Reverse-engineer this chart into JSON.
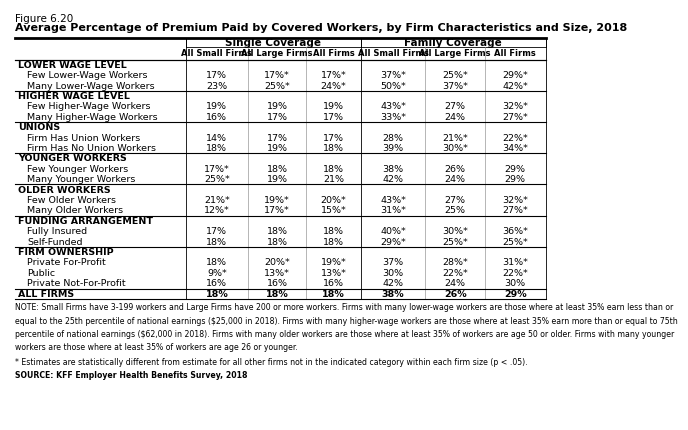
{
  "title_line1": "Figure 6.20",
  "title_line2": "Average Percentage of Premium Paid by Covered Workers, by Firm Characteristics and Size, 2018",
  "col_headers_level2": [
    "All Small Firms",
    "All Large Firms",
    "All Firms",
    "All Small Firms",
    "All Large Firms",
    "All Firms"
  ],
  "rows": [
    {
      "label": "LOWER WAGE LEVEL",
      "bold": true,
      "category": true,
      "values": [
        "",
        "",
        "",
        "",
        "",
        ""
      ]
    },
    {
      "label": "Few Lower-Wage Workers",
      "bold": false,
      "category": false,
      "values": [
        "17%",
        "17%*",
        "17%*",
        "37%*",
        "25%*",
        "29%*"
      ]
    },
    {
      "label": "Many Lower-Wage Workers",
      "bold": false,
      "category": false,
      "values": [
        "23%",
        "25%*",
        "24%*",
        "50%*",
        "37%*",
        "42%*"
      ]
    },
    {
      "label": "HIGHER WAGE LEVEL",
      "bold": true,
      "category": true,
      "values": [
        "",
        "",
        "",
        "",
        "",
        ""
      ]
    },
    {
      "label": "Few Higher-Wage Workers",
      "bold": false,
      "category": false,
      "values": [
        "19%",
        "19%",
        "19%",
        "43%*",
        "27%",
        "32%*"
      ]
    },
    {
      "label": "Many Higher-Wage Workers",
      "bold": false,
      "category": false,
      "values": [
        "16%",
        "17%",
        "17%",
        "33%*",
        "24%",
        "27%*"
      ]
    },
    {
      "label": "UNIONS",
      "bold": true,
      "category": true,
      "values": [
        "",
        "",
        "",
        "",
        "",
        ""
      ]
    },
    {
      "label": "Firm Has Union Workers",
      "bold": false,
      "category": false,
      "values": [
        "14%",
        "17%",
        "17%",
        "28%",
        "21%*",
        "22%*"
      ]
    },
    {
      "label": "Firm Has No Union Workers",
      "bold": false,
      "category": false,
      "values": [
        "18%",
        "19%",
        "18%",
        "39%",
        "30%*",
        "34%*"
      ]
    },
    {
      "label": "YOUNGER WORKERS",
      "bold": true,
      "category": true,
      "values": [
        "",
        "",
        "",
        "",
        "",
        ""
      ]
    },
    {
      "label": "Few Younger Workers",
      "bold": false,
      "category": false,
      "values": [
        "17%*",
        "18%",
        "18%",
        "38%",
        "26%",
        "29%"
      ]
    },
    {
      "label": "Many Younger Workers",
      "bold": false,
      "category": false,
      "values": [
        "25%*",
        "19%",
        "21%",
        "42%",
        "24%",
        "29%"
      ]
    },
    {
      "label": "OLDER WORKERS",
      "bold": true,
      "category": true,
      "values": [
        "",
        "",
        "",
        "",
        "",
        ""
      ]
    },
    {
      "label": "Few Older Workers",
      "bold": false,
      "category": false,
      "values": [
        "21%*",
        "19%*",
        "20%*",
        "43%*",
        "27%",
        "32%*"
      ]
    },
    {
      "label": "Many Older Workers",
      "bold": false,
      "category": false,
      "values": [
        "12%*",
        "17%*",
        "15%*",
        "31%*",
        "25%",
        "27%*"
      ]
    },
    {
      "label": "FUNDING ARRANGEMENT",
      "bold": true,
      "category": true,
      "values": [
        "",
        "",
        "",
        "",
        "",
        ""
      ]
    },
    {
      "label": "Fully Insured",
      "bold": false,
      "category": false,
      "values": [
        "17%",
        "18%",
        "18%",
        "40%*",
        "30%*",
        "36%*"
      ]
    },
    {
      "label": "Self-Funded",
      "bold": false,
      "category": false,
      "values": [
        "18%",
        "18%",
        "18%",
        "29%*",
        "25%*",
        "25%*"
      ]
    },
    {
      "label": "FIRM OWNERSHIP",
      "bold": true,
      "category": true,
      "values": [
        "",
        "",
        "",
        "",
        "",
        ""
      ]
    },
    {
      "label": "Private For-Profit",
      "bold": false,
      "category": false,
      "values": [
        "18%",
        "20%*",
        "19%*",
        "37%",
        "28%*",
        "31%*"
      ]
    },
    {
      "label": "Public",
      "bold": false,
      "category": false,
      "values": [
        "9%*",
        "13%*",
        "13%*",
        "30%",
        "22%*",
        "22%*"
      ]
    },
    {
      "label": "Private Not-For-Profit",
      "bold": false,
      "category": false,
      "values": [
        "16%",
        "16%",
        "16%",
        "42%",
        "24%",
        "30%"
      ]
    },
    {
      "label": "ALL FIRMS",
      "bold": true,
      "category": false,
      "all_firms": true,
      "values": [
        "18%",
        "18%",
        "18%",
        "38%",
        "26%",
        "29%"
      ]
    }
  ],
  "note_line1": "NOTE: Small Firms have 3-199 workers and Large Firms have 200 or more workers. Firms with many lower-wage workers are those where at least 35% earn less than or",
  "note_line2": "equal to the 25th percentile of national earnings ($25,000 in 2018). Firms with many higher-wage workers are those where at least 35% earn more than or equal to 75th",
  "note_line3": "percentile of national earnings ($62,000 in 2018). Firms with many older workers are those where at least 35% of workers are age 50 or older. Firms with many younger",
  "note_line4": "workers are those where at least 35% of workers are age 26 or younger.",
  "asterisk_note": "* Estimates are statistically different from estimate for all other firms not in the indicated category within each firm size (p < .05).",
  "source": "SOURCE: KFF Employer Health Benefits Survey, 2018",
  "bg_color": "#FFFFFF"
}
